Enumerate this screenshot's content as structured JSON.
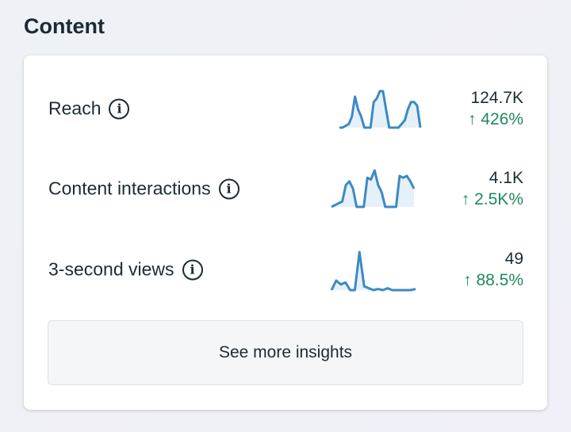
{
  "title": "Content",
  "metrics": [
    {
      "label": "Reach",
      "value": "124.7K",
      "change": "↑ 426%",
      "spark": [
        0,
        0,
        0.05,
        0.1,
        0.3,
        0.85,
        0.5,
        0.3,
        0,
        0,
        0,
        0.7,
        0.8,
        1,
        1,
        0.5,
        0,
        0,
        0,
        0,
        0.1,
        0.2,
        0.5,
        0.7,
        0.7,
        0.6,
        0
      ]
    },
    {
      "label": "Content interactions",
      "value": "4.1K",
      "change": "↑ 2.5K%",
      "spark": [
        0,
        0.05,
        0.1,
        0.15,
        0.6,
        0.7,
        0.5,
        0,
        0,
        0,
        0.8,
        0.75,
        1,
        0.6,
        0.4,
        0,
        0,
        0,
        0,
        0.85,
        0.8,
        0.85,
        0.7,
        0.5
      ]
    },
    {
      "label": "3-second views",
      "value": "49",
      "change": "↑ 88.5%",
      "spark": [
        0,
        0.25,
        0.15,
        0.2,
        0,
        0,
        1,
        0.1,
        0.05,
        0,
        0.03,
        0,
        0.05,
        0,
        0,
        0,
        0,
        0,
        0.03
      ]
    }
  ],
  "button": "See more insights",
  "colors": {
    "line": "#3b8ac4",
    "fill": "#e6f0f9",
    "up": "#1f8a5a"
  }
}
